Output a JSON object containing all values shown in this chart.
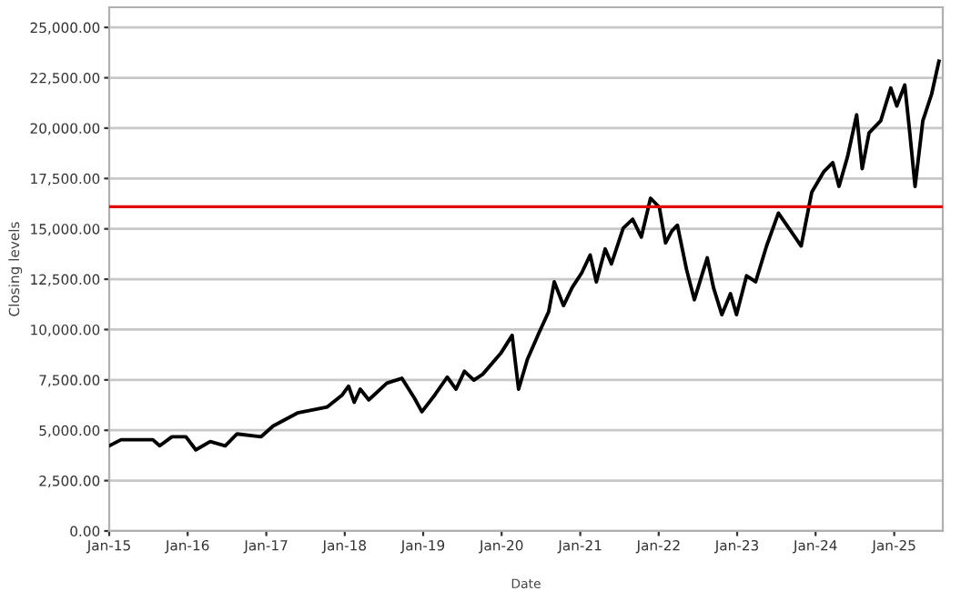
{
  "chart_data": {
    "type": "line",
    "xlabel": "Date",
    "ylabel": "Closing levels",
    "x": [
      "2015-01-02",
      "2015-02-25",
      "2015-07-23",
      "2015-08-24",
      "2015-10-20",
      "2015-12-24",
      "2016-02-08",
      "2016-04-15",
      "2016-06-24",
      "2016-08-18",
      "2016-12-08",
      "2017-02-02",
      "2017-05-26",
      "2017-10-12",
      "2017-12-20",
      "2018-01-19",
      "2018-02-14",
      "2018-03-14",
      "2018-04-23",
      "2018-07-16",
      "2018-09-24",
      "2018-11-21",
      "2018-12-26",
      "2019-02-24",
      "2019-04-23",
      "2019-06-03",
      "2019-07-12",
      "2019-08-25",
      "2019-10-05",
      "2019-12-28",
      "2020-02-19",
      "2020-03-20",
      "2020-04-30",
      "2020-06-24",
      "2020-08-07",
      "2020-09-02",
      "2020-10-15",
      "2020-11-24",
      "2021-01-08",
      "2021-02-16",
      "2021-03-17",
      "2021-04-27",
      "2021-05-26",
      "2021-07-20",
      "2021-09-02",
      "2021-10-12",
      "2021-11-24",
      "2022-01-04",
      "2022-02-02",
      "2022-03-03",
      "2022-03-29",
      "2022-05-11",
      "2022-06-16",
      "2022-07-20",
      "2022-08-15",
      "2022-09-13",
      "2022-10-22",
      "2022-12-01",
      "2022-12-29",
      "2023-02-14",
      "2023-03-28",
      "2023-05-18",
      "2023-07-12",
      "2023-09-08",
      "2023-10-26",
      "2023-12-14",
      "2024-02-09",
      "2024-03-21",
      "2024-04-19",
      "2024-05-29",
      "2024-07-10",
      "2024-08-05",
      "2024-09-06",
      "2024-10-30",
      "2024-12-16",
      "2025-01-13",
      "2025-02-19",
      "2025-03-13",
      "2025-04-08",
      "2025-05-14",
      "2025-06-24",
      "2025-07-28"
    ],
    "series": [
      {
        "color": "#000000",
        "values": [
          4230,
          4530,
          4530,
          4230,
          4680,
          4680,
          4030,
          4440,
          4230,
          4820,
          4680,
          5210,
          5860,
          6160,
          6750,
          7190,
          6390,
          7040,
          6510,
          7340,
          7580,
          6600,
          5920,
          6750,
          7640,
          7040,
          7930,
          7490,
          7780,
          8820,
          9710,
          7040,
          8520,
          9860,
          10890,
          12370,
          11190,
          12080,
          12820,
          13700,
          12370,
          14000,
          13260,
          15040,
          15480,
          14590,
          16520,
          16070,
          14300,
          14890,
          15180,
          12960,
          11480,
          12670,
          13560,
          12080,
          10740,
          11780,
          10740,
          12670,
          12370,
          14150,
          15780,
          14890,
          14150,
          16810,
          17850,
          18290,
          17110,
          18590,
          20660,
          17990,
          19770,
          20360,
          21990,
          21100,
          22140,
          19920,
          17110,
          20360,
          21690,
          23320
        ]
      }
    ],
    "xlim": [
      "2015-01-01",
      "2025-08-15"
    ],
    "xticks": [
      {
        "value": "2015-01-01",
        "label": "Jan-15"
      },
      {
        "value": "2016-01-01",
        "label": "Jan-16"
      },
      {
        "value": "2017-01-01",
        "label": "Jan-17"
      },
      {
        "value": "2018-01-01",
        "label": "Jan-18"
      },
      {
        "value": "2019-01-01",
        "label": "Jan-19"
      },
      {
        "value": "2020-01-01",
        "label": "Jan-20"
      },
      {
        "value": "2021-01-01",
        "label": "Jan-21"
      },
      {
        "value": "2022-01-01",
        "label": "Jan-22"
      },
      {
        "value": "2023-01-01",
        "label": "Jan-23"
      },
      {
        "value": "2024-01-01",
        "label": "Jan-24"
      },
      {
        "value": "2025-01-01",
        "label": "Jan-25"
      }
    ],
    "ylim": [
      0,
      26000
    ],
    "yticks": [
      {
        "value": 0,
        "label": "0.00"
      },
      {
        "value": 2500,
        "label": "2,500.00"
      },
      {
        "value": 5000,
        "label": "5,000.00"
      },
      {
        "value": 7500,
        "label": "7,500.00"
      },
      {
        "value": 10000,
        "label": "10,000.00"
      },
      {
        "value": 12500,
        "label": "12,500.00"
      },
      {
        "value": 15000,
        "label": "15,000.00"
      },
      {
        "value": 17500,
        "label": "17,500.00"
      },
      {
        "value": 20000,
        "label": "20,000.00"
      },
      {
        "value": 22500,
        "label": "22,500.00"
      },
      {
        "value": 25000,
        "label": "25,000.00"
      }
    ],
    "ref_lines": [
      {
        "axis": "y",
        "value": 16100,
        "color": "#e00000"
      }
    ],
    "grid": "y",
    "line_style": "solid"
  }
}
